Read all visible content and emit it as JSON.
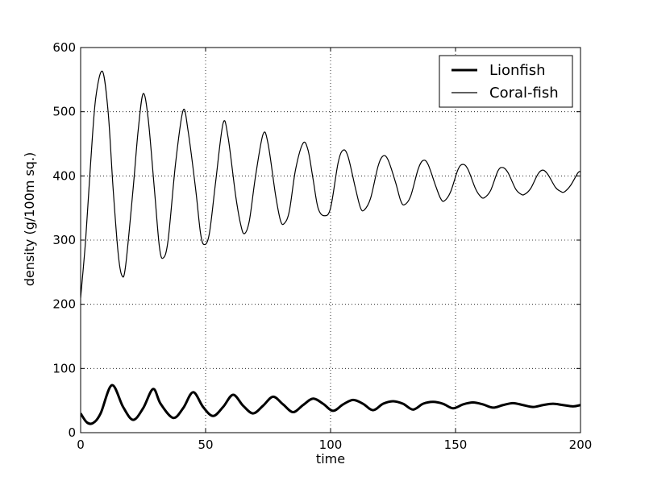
{
  "chart_data": {
    "type": "line",
    "title": "",
    "xlabel": "time",
    "ylabel": "density (g/100m sq.)",
    "xlim": [
      0,
      200
    ],
    "ylim": [
      0,
      600
    ],
    "xticks": [
      0,
      50,
      100,
      150,
      200
    ],
    "yticks": [
      0,
      100,
      200,
      300,
      400,
      500,
      600
    ],
    "grid": true,
    "legend_position": "top-right",
    "series": [
      {
        "name": "Lionfish",
        "line_width": "thick",
        "color": "#000000",
        "points": [
          [
            0,
            30
          ],
          [
            2.5,
            16
          ],
          [
            5,
            15
          ],
          [
            8,
            30
          ],
          [
            12.5,
            74
          ],
          [
            17,
            40
          ],
          [
            21,
            20
          ],
          [
            25,
            38
          ],
          [
            29,
            68
          ],
          [
            32,
            45
          ],
          [
            37,
            23
          ],
          [
            41,
            38
          ],
          [
            45,
            63
          ],
          [
            49,
            40
          ],
          [
            53,
            26
          ],
          [
            57,
            40
          ],
          [
            61,
            59
          ],
          [
            65,
            42
          ],
          [
            69,
            30
          ],
          [
            73,
            42
          ],
          [
            77,
            56
          ],
          [
            81,
            44
          ],
          [
            85,
            32
          ],
          [
            89,
            43
          ],
          [
            93,
            53
          ],
          [
            97,
            45
          ],
          [
            101,
            34
          ],
          [
            105,
            44
          ],
          [
            109,
            51
          ],
          [
            113,
            45
          ],
          [
            117,
            35
          ],
          [
            121,
            45
          ],
          [
            125,
            49
          ],
          [
            129,
            45
          ],
          [
            133,
            36
          ],
          [
            137,
            45
          ],
          [
            141,
            48
          ],
          [
            145,
            45
          ],
          [
            149,
            38
          ],
          [
            153,
            44
          ],
          [
            157,
            47
          ],
          [
            161,
            44
          ],
          [
            165,
            39
          ],
          [
            169,
            43
          ],
          [
            173,
            46
          ],
          [
            177,
            43
          ],
          [
            181,
            40
          ],
          [
            185,
            43
          ],
          [
            189,
            45
          ],
          [
            193,
            43
          ],
          [
            197,
            41
          ],
          [
            200,
            43
          ]
        ]
      },
      {
        "name": "Coral-fish",
        "line_width": "thin",
        "color": "#000000",
        "points": [
          [
            0,
            210
          ],
          [
            2,
            300
          ],
          [
            4,
            420
          ],
          [
            6,
            520
          ],
          [
            8.7,
            563
          ],
          [
            11,
            500
          ],
          [
            13,
            380
          ],
          [
            15,
            280
          ],
          [
            16.5,
            245
          ],
          [
            18,
            260
          ],
          [
            21,
            380
          ],
          [
            23,
            470
          ],
          [
            25,
            528
          ],
          [
            27,
            490
          ],
          [
            29.5,
            380
          ],
          [
            31.5,
            290
          ],
          [
            33,
            272
          ],
          [
            35,
            300
          ],
          [
            38,
            420
          ],
          [
            41,
            502
          ],
          [
            43,
            470
          ],
          [
            46,
            380
          ],
          [
            48,
            310
          ],
          [
            49.5,
            293
          ],
          [
            51.5,
            310
          ],
          [
            54,
            390
          ],
          [
            57,
            482
          ],
          [
            59,
            460
          ],
          [
            62,
            370
          ],
          [
            64,
            325
          ],
          [
            65.5,
            310
          ],
          [
            67.5,
            330
          ],
          [
            70,
            400
          ],
          [
            73,
            465
          ],
          [
            75,
            450
          ],
          [
            78,
            370
          ],
          [
            80,
            330
          ],
          [
            81.5,
            326
          ],
          [
            83.5,
            345
          ],
          [
            86,
            410
          ],
          [
            89,
            451
          ],
          [
            91,
            440
          ],
          [
            93,
            395
          ],
          [
            95,
            350
          ],
          [
            97.5,
            338
          ],
          [
            100,
            350
          ],
          [
            103,
            420
          ],
          [
            105,
            440
          ],
          [
            107,
            430
          ],
          [
            110,
            380
          ],
          [
            112,
            350
          ],
          [
            113.5,
            347
          ],
          [
            116,
            365
          ],
          [
            119,
            415
          ],
          [
            121,
            431
          ],
          [
            123,
            425
          ],
          [
            126,
            390
          ],
          [
            128,
            362
          ],
          [
            129.5,
            355
          ],
          [
            132,
            368
          ],
          [
            135,
            410
          ],
          [
            137,
            424
          ],
          [
            139,
            418
          ],
          [
            142,
            385
          ],
          [
            144,
            365
          ],
          [
            145.5,
            361
          ],
          [
            148,
            375
          ],
          [
            151,
            410
          ],
          [
            153,
            418
          ],
          [
            155,
            410
          ],
          [
            158,
            380
          ],
          [
            160,
            368
          ],
          [
            161.5,
            366
          ],
          [
            164,
            377
          ],
          [
            167,
            408
          ],
          [
            169,
            413
          ],
          [
            171,
            405
          ],
          [
            174,
            380
          ],
          [
            176,
            372
          ],
          [
            177.5,
            371
          ],
          [
            180,
            380
          ],
          [
            183,
            403
          ],
          [
            185,
            409
          ],
          [
            187,
            402
          ],
          [
            190,
            382
          ],
          [
            192,
            376
          ],
          [
            193.5,
            375
          ],
          [
            196,
            385
          ],
          [
            199,
            405
          ],
          [
            200,
            406
          ]
        ]
      }
    ]
  }
}
